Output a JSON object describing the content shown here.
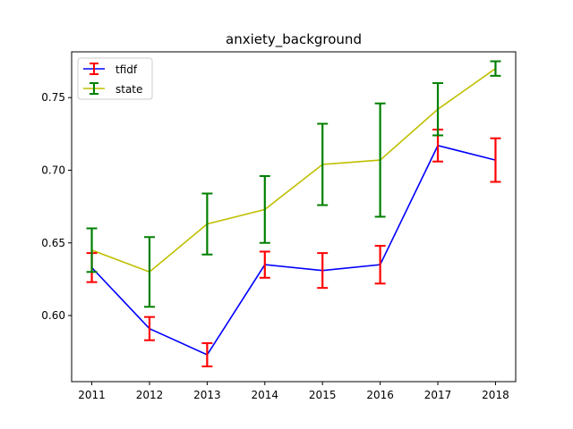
{
  "chart_data": {
    "type": "line",
    "title": "anxiety_background",
    "xlabel": "",
    "ylabel": "",
    "x": [
      2011,
      2012,
      2013,
      2014,
      2015,
      2016,
      2017,
      2018
    ],
    "x_tick_labels": [
      "2011",
      "2012",
      "2013",
      "2014",
      "2015",
      "2016",
      "2017",
      "2018"
    ],
    "y_ticks": [
      0.6,
      0.65,
      0.7,
      0.75
    ],
    "y_tick_labels": [
      "0.60",
      "0.65",
      "0.70",
      "0.75"
    ],
    "xlim": [
      2010.65,
      2018.35
    ],
    "ylim": [
      0.5545,
      0.7815
    ],
    "grid": false,
    "legend_position": "upper-left",
    "series": [
      {
        "name": "tfidf",
        "line_color": "#0000ff",
        "error_color": "#ff0000",
        "y": [
          0.633,
          0.591,
          0.573,
          0.635,
          0.631,
          0.635,
          0.717,
          0.707
        ],
        "err": [
          0.01,
          0.008,
          0.008,
          0.009,
          0.012,
          0.013,
          0.011,
          0.015
        ]
      },
      {
        "name": "state",
        "line_color": "#bfbf00",
        "error_color": "#008000",
        "y": [
          0.645,
          0.63,
          0.663,
          0.673,
          0.704,
          0.707,
          0.742,
          0.77
        ],
        "err": [
          0.015,
          0.024,
          0.021,
          0.023,
          0.028,
          0.039,
          0.018,
          0.005
        ]
      }
    ]
  }
}
